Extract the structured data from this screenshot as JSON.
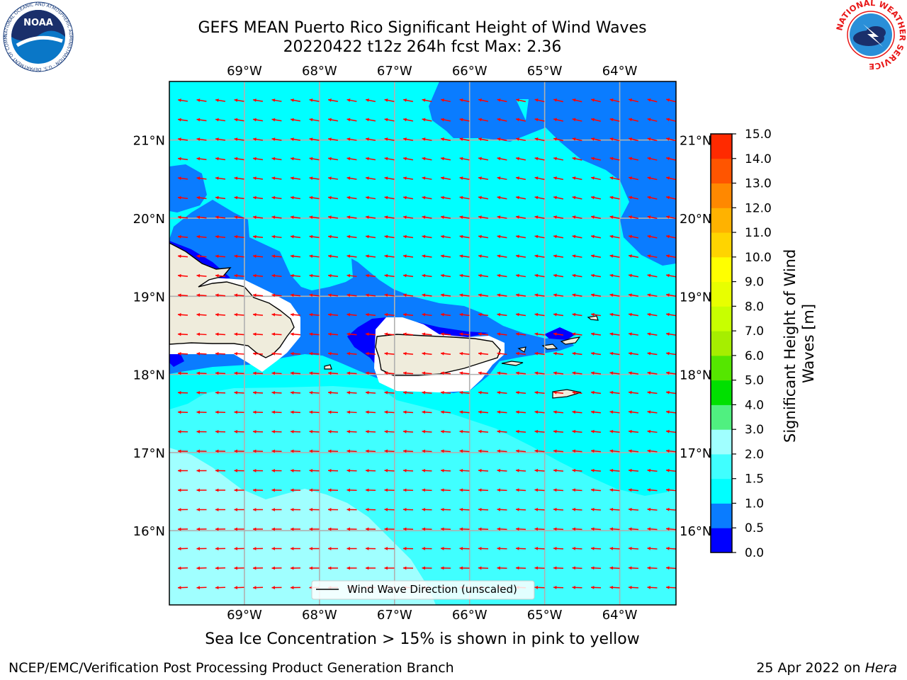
{
  "title": {
    "line1": "GEFS MEAN Puerto Rico Significant Height of Wind Waves",
    "line2": "20220422 t12z 264h fcst   Max: 2.36"
  },
  "map": {
    "lon_labels": [
      "69°W",
      "68°W",
      "67°W",
      "66°W",
      "65°W",
      "64°W"
    ],
    "lon_values": [
      -69,
      -68,
      -67,
      -66,
      -65,
      -64
    ],
    "lat_labels": [
      "21°N",
      "20°N",
      "19°N",
      "18°N",
      "17°N",
      "16°N"
    ],
    "lat_values": [
      21,
      20,
      19,
      18,
      17,
      16
    ],
    "lon_range": [
      -70,
      -63.25
    ],
    "lat_range": [
      15.05,
      21.75
    ],
    "legend_label": "Wind Wave Direction (unscaled)",
    "arrow_color": "#ff0000",
    "land_color": "#efecdc"
  },
  "colorbar": {
    "label": "Significant Height of Wind Waves [m]",
    "label_line1": "Significant Height of Wind",
    "label_line2": "Waves [m]",
    "tick_labels": [
      "0.0",
      "0.5",
      "1.0",
      "1.5",
      "2.0",
      "3.0",
      "4.0",
      "5.0",
      "6.0",
      "7.0",
      "8.0",
      "9.0",
      "10.0",
      "11.0",
      "12.0",
      "13.0",
      "14.0",
      "15.0"
    ],
    "colors": [
      "#0000ff",
      "#0a7cff",
      "#00ffff",
      "#40ffff",
      "#a0ffff",
      "#50f080",
      "#00e000",
      "#55e600",
      "#a6ee00",
      "#c8ff00",
      "#e8ff00",
      "#ffff00",
      "#ffd400",
      "#ffb200",
      "#ff8800",
      "#ff5500",
      "#ff2a00",
      "#ff0000"
    ]
  },
  "caption": "Sea Ice Concentration > 15% is shown in pink to yellow",
  "footer": {
    "left": "NCEP/EMC/Verification Post Processing Product Generation Branch",
    "right_date": "25 Apr 2022 on ",
    "right_host": "Hera"
  },
  "logos": {
    "noaa_text": "NOAA",
    "noaa_ring": "NATIONAL OCEANIC AND ATMOSPHERIC ADMINISTRATION · U.S. DEPARTMENT OF COMMERCE",
    "nws_ring": "NATIONAL WEATHER SERVICE"
  }
}
